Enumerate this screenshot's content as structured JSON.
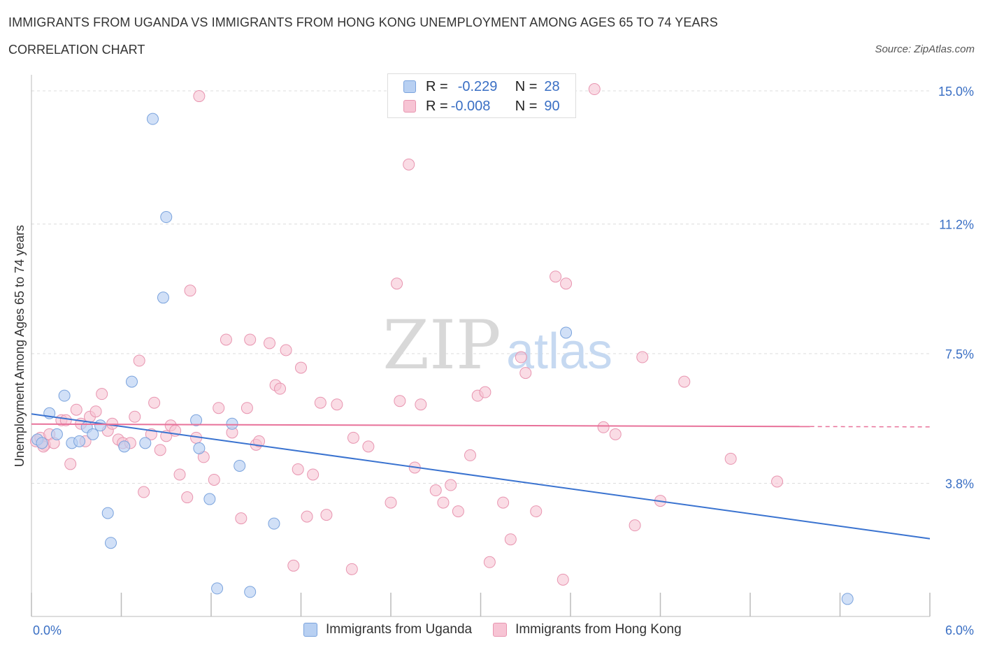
{
  "header": {
    "title": "IMMIGRANTS FROM UGANDA VS IMMIGRANTS FROM HONG KONG UNEMPLOYMENT AMONG AGES 65 TO 74 YEARS",
    "subtitle": "CORRELATION CHART",
    "source": "Source: ZipAtlas.com"
  },
  "watermark": {
    "zip": "ZIP",
    "atlas": "atlas"
  },
  "legend": {
    "uganda": {
      "r_label": "R =",
      "r_value": "-0.229",
      "n_label": "N =",
      "n_value": "28"
    },
    "hongkong": {
      "r_label": "R =",
      "r_value": "-0.008",
      "n_label": "N =",
      "n_value": "90"
    }
  },
  "colors": {
    "uganda_fill": "#b8d0f2",
    "uganda_stroke": "#7aa3dd",
    "uganda_line": "#3a73d0",
    "hongkong_fill": "#f7c4d4",
    "hongkong_stroke": "#e895b0",
    "hongkong_line": "#e8729a",
    "tick_label": "#3a6fc4",
    "grid": "#dddddd"
  },
  "chart_data": {
    "type": "scatter",
    "title": "IMMIGRANTS FROM UGANDA VS IMMIGRANTS FROM HONG KONG UNEMPLOYMENT AMONG AGES 65 TO 74 YEARS",
    "xlabel": "",
    "ylabel": "Unemployment Among Ages 65 to 74 years",
    "xlim": [
      0,
      6.0
    ],
    "ylim": [
      0,
      15.3
    ],
    "x_tick_labels": [
      {
        "value": 0,
        "label": "0.0%"
      },
      {
        "value": 6.0,
        "label": "6.0%"
      }
    ],
    "y_ticks": [
      {
        "value": 3.8,
        "label": "3.8%"
      },
      {
        "value": 7.5,
        "label": "7.5%"
      },
      {
        "value": 11.2,
        "label": "11.2%"
      },
      {
        "value": 15.0,
        "label": "15.0%"
      }
    ],
    "grid": true,
    "series": [
      {
        "name": "Immigrants from Uganda",
        "trend": {
          "x": [
            0,
            6.0
          ],
          "y": [
            5.78,
            2.22
          ]
        },
        "points": [
          [
            0.04,
            5.05
          ],
          [
            0.07,
            4.95
          ],
          [
            0.12,
            5.8
          ],
          [
            0.17,
            5.2
          ],
          [
            0.22,
            6.3
          ],
          [
            0.27,
            4.95
          ],
          [
            0.32,
            5.0
          ],
          [
            0.37,
            5.4
          ],
          [
            0.41,
            5.2
          ],
          [
            0.46,
            5.45
          ],
          [
            0.51,
            2.95
          ],
          [
            0.53,
            2.1
          ],
          [
            0.62,
            4.85
          ],
          [
            0.67,
            6.7
          ],
          [
            0.76,
            4.95
          ],
          [
            0.81,
            14.2
          ],
          [
            0.88,
            9.1
          ],
          [
            0.9,
            11.4
          ],
          [
            1.1,
            5.6
          ],
          [
            1.12,
            4.8
          ],
          [
            1.19,
            3.35
          ],
          [
            1.24,
            0.8
          ],
          [
            1.34,
            5.5
          ],
          [
            1.39,
            4.3
          ],
          [
            1.46,
            0.7
          ],
          [
            1.62,
            2.65
          ],
          [
            3.57,
            8.1
          ],
          [
            5.45,
            0.5
          ]
        ]
      },
      {
        "name": "Immigrants from Hong Kong",
        "trend": {
          "x": [
            0,
            5.2
          ],
          "y": [
            5.49,
            5.42
          ],
          "dashed_to": {
            "x": 6.0,
            "y": 5.41
          }
        },
        "points": [
          [
            0.03,
            5.0
          ],
          [
            0.06,
            5.1
          ],
          [
            0.09,
            4.9
          ],
          [
            0.12,
            5.2
          ],
          [
            0.15,
            4.95
          ],
          [
            0.2,
            5.6
          ],
          [
            0.23,
            5.6
          ],
          [
            0.26,
            4.35
          ],
          [
            0.3,
            5.9
          ],
          [
            0.33,
            5.5
          ],
          [
            0.36,
            5.0
          ],
          [
            0.39,
            5.7
          ],
          [
            0.43,
            5.85
          ],
          [
            0.47,
            6.35
          ],
          [
            0.51,
            5.3
          ],
          [
            0.54,
            5.5
          ],
          [
            0.58,
            5.05
          ],
          [
            0.61,
            4.95
          ],
          [
            0.66,
            4.95
          ],
          [
            0.69,
            5.7
          ],
          [
            0.72,
            7.3
          ],
          [
            0.75,
            3.55
          ],
          [
            0.8,
            5.2
          ],
          [
            0.82,
            6.1
          ],
          [
            0.86,
            4.75
          ],
          [
            0.9,
            5.15
          ],
          [
            0.93,
            5.45
          ],
          [
            0.96,
            5.3
          ],
          [
            0.99,
            4.05
          ],
          [
            1.04,
            3.4
          ],
          [
            1.06,
            9.3
          ],
          [
            1.1,
            5.1
          ],
          [
            1.15,
            4.55
          ],
          [
            1.22,
            3.9
          ],
          [
            1.25,
            5.95
          ],
          [
            1.3,
            7.9
          ],
          [
            1.34,
            5.25
          ],
          [
            1.4,
            2.8
          ],
          [
            1.44,
            5.95
          ],
          [
            1.46,
            7.9
          ],
          [
            1.5,
            4.9
          ],
          [
            1.52,
            5.0
          ],
          [
            1.59,
            7.8
          ],
          [
            1.63,
            6.6
          ],
          [
            1.66,
            6.5
          ],
          [
            1.7,
            7.6
          ],
          [
            1.75,
            1.45
          ],
          [
            1.78,
            4.2
          ],
          [
            1.8,
            7.1
          ],
          [
            1.84,
            2.85
          ],
          [
            1.88,
            4.05
          ],
          [
            1.93,
            6.1
          ],
          [
            1.97,
            2.9
          ],
          [
            2.04,
            6.05
          ],
          [
            2.14,
            1.35
          ],
          [
            2.15,
            5.1
          ],
          [
            2.25,
            4.85
          ],
          [
            2.4,
            3.25
          ],
          [
            2.44,
            9.5
          ],
          [
            2.46,
            6.15
          ],
          [
            2.52,
            12.9
          ],
          [
            2.56,
            4.25
          ],
          [
            2.6,
            6.05
          ],
          [
            2.7,
            3.6
          ],
          [
            2.75,
            3.25
          ],
          [
            2.8,
            3.75
          ],
          [
            2.85,
            3.0
          ],
          [
            2.93,
            4.6
          ],
          [
            2.98,
            6.3
          ],
          [
            3.03,
            6.4
          ],
          [
            3.06,
            1.55
          ],
          [
            3.15,
            3.25
          ],
          [
            3.2,
            2.2
          ],
          [
            3.27,
            7.4
          ],
          [
            3.3,
            6.95
          ],
          [
            3.37,
            3.0
          ],
          [
            3.5,
            9.7
          ],
          [
            3.55,
            1.05
          ],
          [
            3.57,
            9.5
          ],
          [
            3.76,
            15.05
          ],
          [
            3.82,
            5.4
          ],
          [
            3.9,
            5.2
          ],
          [
            4.03,
            2.6
          ],
          [
            4.08,
            7.4
          ],
          [
            4.2,
            3.3
          ],
          [
            4.36,
            6.7
          ],
          [
            4.67,
            4.5
          ],
          [
            4.98,
            3.85
          ],
          [
            0.08,
            4.85
          ],
          [
            1.12,
            14.85
          ]
        ]
      }
    ]
  },
  "bottom_legend": {
    "uganda_label": "Immigrants from Uganda",
    "hongkong_label": "Immigrants from Hong Kong"
  }
}
